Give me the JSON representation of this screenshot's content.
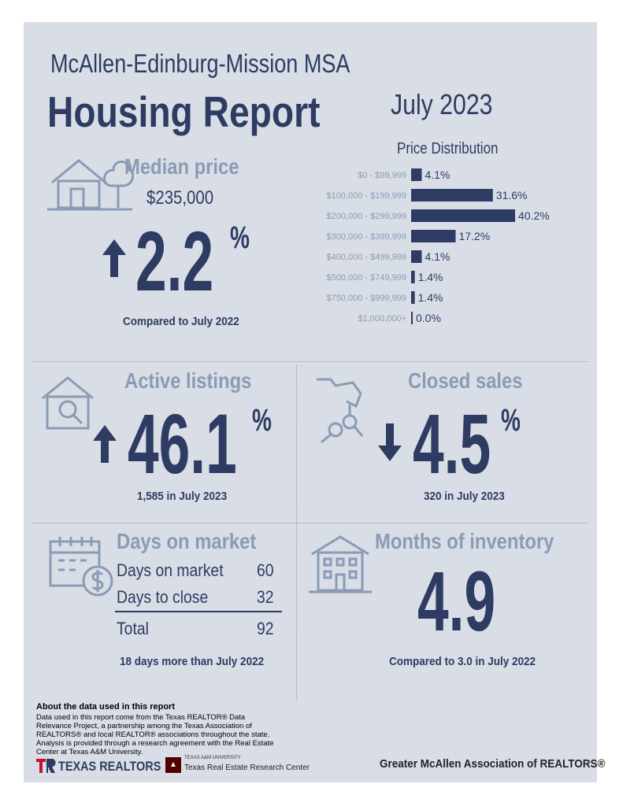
{
  "header": {
    "msa": "McAllen-Edinburg-Mission MSA",
    "title": "Housing Report",
    "month": "July 2023"
  },
  "median_price": {
    "label": "Median price",
    "value": "$235,000",
    "change": "2.2",
    "pct": "%",
    "direction": "up",
    "note": "Compared to July 2022"
  },
  "price_distribution": {
    "title": "Price Distribution"
  },
  "chart_data": {
    "type": "bar",
    "title": "Price Distribution",
    "categories": [
      "$0 - $99,999",
      "$100,000 - $199,999",
      "$200,000 - $299,999",
      "$300,000 - $399,999",
      "$400,000 - $499,999",
      "$500,000 - $749,999",
      "$750,000 - $999,999",
      "$1,000,000+"
    ],
    "values": [
      4.1,
      31.6,
      40.2,
      17.2,
      4.1,
      1.4,
      1.4,
      0.0
    ],
    "value_labels": [
      "4.1%",
      "31.6%",
      "40.2%",
      "17.2%",
      "4.1%",
      "1.4%",
      "1.4%",
      "0.0%"
    ],
    "orientation": "horizontal",
    "color": "#2e3b63"
  },
  "active_listings": {
    "label": "Active listings",
    "change": "46.1",
    "pct": "%",
    "direction": "up",
    "note": "1,585 in July 2023"
  },
  "closed_sales": {
    "label": "Closed sales",
    "change": "4.5",
    "pct": "%",
    "direction": "down",
    "note": "320 in July 2023"
  },
  "days_on_market": {
    "label": "Days on market",
    "rows": [
      {
        "label": "Days on market",
        "value": "60"
      },
      {
        "label": "Days to close",
        "value": "32"
      }
    ],
    "total_label": "Total",
    "total_value": "92",
    "note": "18 days more than July 2022"
  },
  "months_inventory": {
    "label": "Months of inventory",
    "value": "4.9",
    "note": "Compared to 3.0 in July 2022"
  },
  "footer": {
    "about_title": "About the data used in this report",
    "about_text": "Data used in this report come from the Texas REALTOR® Data Relevance Project, a partnership among the Texas Association of REALTORS® and local REALTOR® associations throughout the state. Analysis is provided through a research agreement with the Real Estate Center at Texas A&M University.",
    "texas_realtors": "TEXAS REALTORS",
    "tamu_small": "TEXAS A&M UNIVERSITY",
    "tamu_center": "Texas Real Estate Research Center",
    "association": "Greater McAllen Association of REALTORS®"
  },
  "colors": {
    "navy": "#2e3b63",
    "steel": "#8a9bb5",
    "panel": "#d9dee6",
    "red": "#c8102e",
    "maroon": "#500000"
  }
}
